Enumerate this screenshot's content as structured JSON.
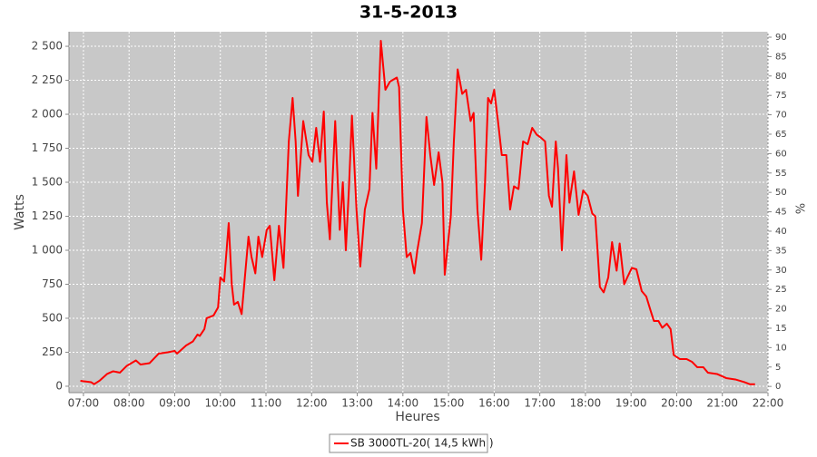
{
  "chart_data": {
    "type": "line",
    "title": "31-5-2013",
    "x_label": "Heures",
    "y_label": "Watts",
    "y2_label": "%",
    "x": [
      "06:56",
      "07:10",
      "07:14",
      "07:21",
      "07:31",
      "07:39",
      "07:48",
      "07:57",
      "08:09",
      "08:15",
      "08:27",
      "08:39",
      "08:51",
      "09:00",
      "09:03",
      "09:15",
      "09:24",
      "09:30",
      "09:33",
      "09:39",
      "09:42",
      "09:51",
      "09:57",
      "10:00",
      "10:05",
      "10:11",
      "10:15",
      "10:18",
      "10:23",
      "10:28",
      "10:33",
      "10:37",
      "10:41",
      "10:46",
      "10:50",
      "10:55",
      "11:01",
      "11:05",
      "11:11",
      "11:17",
      "11:23",
      "11:30",
      "11:35",
      "11:39",
      "11:42",
      "11:49",
      "11:56",
      "12:01",
      "12:06",
      "12:11",
      "12:16",
      "12:20",
      "12:24",
      "12:31",
      "12:37",
      "12:41",
      "12:45",
      "12:49",
      "12:53",
      "12:59",
      "13:04",
      "13:10",
      "13:16",
      "13:20",
      "13:25",
      "13:31",
      "13:37",
      "13:43",
      "13:52",
      "13:55",
      "14:00",
      "14:05",
      "14:10",
      "14:15",
      "14:19",
      "14:25",
      "14:31",
      "14:36",
      "14:41",
      "14:47",
      "14:52",
      "14:55",
      "15:03",
      "15:07",
      "15:12",
      "15:18",
      "15:23",
      "15:29",
      "15:33",
      "15:38",
      "15:43",
      "15:48",
      "15:52",
      "15:56",
      "16:00",
      "16:05",
      "16:10",
      "16:16",
      "16:21",
      "16:26",
      "16:32",
      "16:38",
      "16:44",
      "16:50",
      "16:56",
      "17:01",
      "17:07",
      "17:12",
      "17:16",
      "17:21",
      "17:24",
      "17:29",
      "17:35",
      "17:39",
      "17:45",
      "17:51",
      "17:57",
      "18:03",
      "18:09",
      "18:13",
      "18:19",
      "18:24",
      "18:30",
      "18:35",
      "18:41",
      "18:45",
      "18:51",
      "18:55",
      "19:01",
      "19:07",
      "19:14",
      "19:20",
      "19:26",
      "19:30",
      "19:36",
      "19:41",
      "19:47",
      "19:52",
      "19:56",
      "20:04",
      "20:13",
      "20:20",
      "20:27",
      "20:35",
      "20:41",
      "20:53",
      "21:05",
      "21:17",
      "21:29",
      "21:36",
      "21:43"
    ],
    "series": [
      {
        "name": "SB 3000TL-20( 14,5 kWh )",
        "color": "#ff0000",
        "values": [
          40,
          30,
          15,
          40,
          90,
          110,
          100,
          150,
          190,
          160,
          170,
          240,
          250,
          260,
          240,
          300,
          330,
          380,
          370,
          420,
          500,
          520,
          580,
          800,
          770,
          1200,
          750,
          600,
          620,
          530,
          850,
          1100,
          950,
          830,
          1100,
          950,
          1150,
          1180,
          780,
          1180,
          870,
          1800,
          2120,
          1800,
          1400,
          1950,
          1700,
          1650,
          1900,
          1650,
          2020,
          1350,
          1080,
          1950,
          1150,
          1500,
          1000,
          1450,
          1990,
          1300,
          880,
          1300,
          1450,
          2010,
          1600,
          2540,
          2180,
          2240,
          2270,
          2200,
          1300,
          950,
          980,
          830,
          1000,
          1200,
          1980,
          1700,
          1480,
          1720,
          1500,
          820,
          1250,
          1800,
          2330,
          2150,
          2180,
          1950,
          2010,
          1300,
          930,
          1500,
          2120,
          2080,
          2180,
          1950,
          1700,
          1700,
          1300,
          1470,
          1450,
          1800,
          1780,
          1900,
          1850,
          1830,
          1800,
          1400,
          1320,
          1800,
          1600,
          1000,
          1700,
          1350,
          1580,
          1260,
          1440,
          1400,
          1270,
          1250,
          730,
          690,
          800,
          1060,
          850,
          1050,
          750,
          800,
          870,
          860,
          700,
          660,
          550,
          480,
          480,
          430,
          460,
          420,
          230,
          200,
          200,
          180,
          140,
          140,
          100,
          90,
          60,
          50,
          30,
          15,
          15
        ]
      }
    ],
    "xlim": [
      "06:41",
      "22:00"
    ],
    "xticks": [
      "07:00",
      "08:00",
      "09:00",
      "10:00",
      "11:00",
      "12:00",
      "13:00",
      "14:00",
      "15:00",
      "16:00",
      "17:00",
      "18:00",
      "19:00",
      "20:00",
      "21:00",
      "22:00"
    ],
    "ylim": [
      -47,
      2607
    ],
    "yticks": [
      0,
      250,
      500,
      750,
      {
        "value": 1000,
        "label": "1 000"
      },
      {
        "value": 1250,
        "label": "1 250"
      },
      {
        "value": 1500,
        "label": "1 500"
      },
      {
        "value": 1750,
        "label": "1 750"
      },
      {
        "value": 2000,
        "label": "2 000"
      },
      {
        "value": 2250,
        "label": "2 250"
      },
      {
        "value": 2500,
        "label": "2 500"
      }
    ],
    "y2lim": [
      -1.6,
      91.4
    ],
    "y2ticks": [
      0,
      5,
      10,
      15,
      20,
      25,
      30,
      35,
      40,
      45,
      50,
      55,
      60,
      65,
      70,
      75,
      80,
      85,
      90
    ],
    "grid": true,
    "legend": "bottom"
  }
}
